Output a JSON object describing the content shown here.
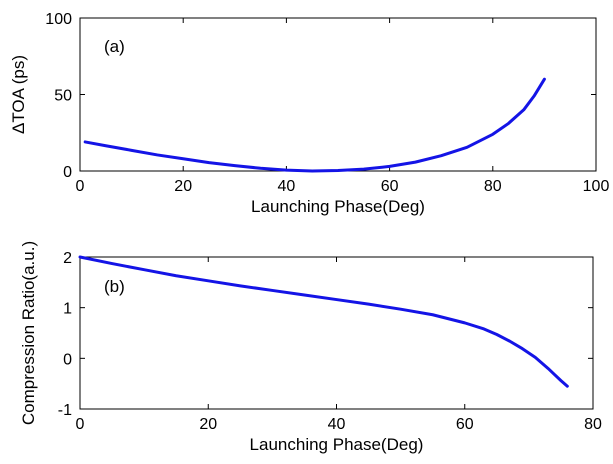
{
  "chart_data": [
    {
      "type": "line",
      "panel_label": "(a)",
      "xlabel": "Launching Phase(Deg)",
      "ylabel": "ΔTOA (ps)",
      "xlim": [
        0,
        100
      ],
      "ylim": [
        0,
        100
      ],
      "xticks": [
        0,
        20,
        40,
        60,
        80,
        100
      ],
      "yticks": [
        0,
        50,
        100
      ],
      "line_color": "#1414e6",
      "grid": false,
      "series": [
        {
          "x": [
            1,
            5,
            10,
            15,
            20,
            25,
            30,
            35,
            40,
            45,
            50,
            55,
            60,
            65,
            70,
            75,
            80,
            83,
            86,
            88,
            90
          ],
          "y": [
            19,
            16.5,
            13.5,
            10.5,
            8,
            5.5,
            3.5,
            1.8,
            0.6,
            0,
            0.3,
            1.2,
            3,
            5.8,
            10,
            15.5,
            24,
            31,
            40,
            49,
            60
          ]
        }
      ]
    },
    {
      "type": "line",
      "panel_label": "(b)",
      "xlabel": "Launching Phase(Deg)",
      "ylabel": "Compression Ratio(a.u.)",
      "xlim": [
        0,
        80
      ],
      "ylim": [
        -1,
        2
      ],
      "xticks": [
        0,
        20,
        40,
        60,
        80
      ],
      "yticks": [
        -1,
        0,
        1,
        2
      ],
      "line_color": "#1414e6",
      "grid": false,
      "series": [
        {
          "x": [
            0,
            5,
            10,
            15,
            20,
            25,
            30,
            35,
            40,
            45,
            50,
            55,
            60,
            63,
            65,
            67,
            69,
            71,
            73,
            74,
            75,
            76
          ],
          "y": [
            2,
            1.87,
            1.75,
            1.63,
            1.53,
            1.43,
            1.34,
            1.25,
            1.16,
            1.07,
            0.97,
            0.86,
            0.7,
            0.58,
            0.47,
            0.34,
            0.19,
            0.02,
            -0.2,
            -0.32,
            -0.44,
            -0.55
          ]
        }
      ]
    }
  ]
}
